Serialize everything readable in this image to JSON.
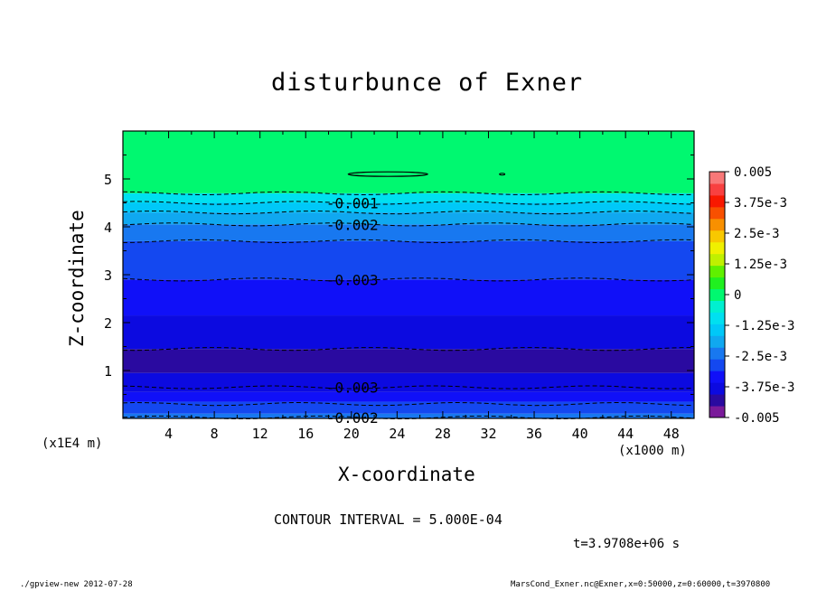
{
  "chart_data": {
    "type": "heatmap",
    "title": "disturbunce of Exner",
    "xlabel": "X-coordinate",
    "ylabel": "Z-coordinate",
    "x_unit_label": "(x1000 m)",
    "y_unit_label": "(x1E4 m)",
    "xlim": [
      0,
      50
    ],
    "ylim": [
      0,
      6
    ],
    "x_ticks": [
      "4",
      "8",
      "12",
      "16",
      "20",
      "24",
      "28",
      "32",
      "36",
      "40",
      "44",
      "48"
    ],
    "x_tick_values": [
      4,
      8,
      12,
      16,
      20,
      24,
      28,
      32,
      36,
      40,
      44,
      48
    ],
    "y_ticks": [
      "1",
      "2",
      "3",
      "4",
      "5"
    ],
    "y_tick_values": [
      1,
      2,
      3,
      4,
      5
    ],
    "colorbar": {
      "range": [
        -0.005,
        0.005
      ],
      "labels": [
        "0.005",
        "3.75e-3",
        "2.5e-3",
        "1.25e-3",
        "0",
        "-1.25e-3",
        "-2.5e-3",
        "-3.75e-3",
        "-0.005"
      ],
      "levels": [
        -0.005,
        -0.0045,
        -0.004,
        -0.0035,
        -0.003,
        -0.0025,
        -0.002,
        -0.0015,
        -0.001,
        -0.0005,
        0,
        0.0005,
        0.001,
        0.0015,
        0.002,
        0.0025,
        0.003,
        0.0035,
        0.004,
        0.0045,
        0.005
      ],
      "colors": [
        "#7a1a9a",
        "#2a0aa0",
        "#0c0ae0",
        "#1010f8",
        "#1448f0",
        "#1878f0",
        "#10a8f0",
        "#00c8f8",
        "#00e0f0",
        "#00f0d0",
        "#00f870",
        "#20f020",
        "#60f000",
        "#c0f000",
        "#f0f000",
        "#f8c800",
        "#f89000",
        "#f85000",
        "#f81800",
        "#f84040",
        "#f87878"
      ]
    },
    "bands": [
      {
        "z0": 0.0,
        "z1": 0.1,
        "value": -0.0025
      },
      {
        "z0": 0.1,
        "z1": 0.35,
        "value": -0.003
      },
      {
        "z0": 0.35,
        "z1": 0.55,
        "value": -0.0035
      },
      {
        "z0": 0.55,
        "z1": 0.95,
        "value": -0.004
      },
      {
        "z0": 0.95,
        "z1": 1.45,
        "value": -0.0045
      },
      {
        "z0": 1.45,
        "z1": 2.15,
        "value": -0.004
      },
      {
        "z0": 2.15,
        "z1": 2.9,
        "value": -0.0035
      },
      {
        "z0": 2.9,
        "z1": 3.7,
        "value": -0.003
      },
      {
        "z0": 3.7,
        "z1": 4.05,
        "value": -0.0025
      },
      {
        "z0": 4.05,
        "z1": 4.3,
        "value": -0.002
      },
      {
        "z0": 4.3,
        "z1": 4.5,
        "value": -0.0015
      },
      {
        "z0": 4.5,
        "z1": 4.7,
        "value": -0.001
      },
      {
        "z0": 4.7,
        "z1": 6.0,
        "value": 0
      }
    ],
    "contour_lines": [
      {
        "z": 0.02
      },
      {
        "z": 0.3
      },
      {
        "z": 0.65
      },
      {
        "z": 1.45
      },
      {
        "z": 2.9
      },
      {
        "z": 3.7
      },
      {
        "z": 4.05
      },
      {
        "z": 4.3
      },
      {
        "z": 4.5
      },
      {
        "z": 4.7
      }
    ],
    "contour_labels": [
      {
        "text": "-0.001",
        "x": 20,
        "z": 4.5
      },
      {
        "text": "-0.002",
        "x": 20,
        "z": 4.05
      },
      {
        "text": "-0.003",
        "x": 20,
        "z": 2.9
      },
      {
        "text": "-0.003",
        "x": 20,
        "z": 0.65
      },
      {
        "text": "-0.002",
        "x": 20,
        "z": 0.02
      }
    ],
    "grid": false,
    "legend": "right (colorbar)"
  },
  "annotations": {
    "contour_interval": "CONTOUR INTERVAL = 5.000E-04",
    "time": "t=3.9708e+06 s",
    "footer_left": "./gpview-new  2012-07-28",
    "footer_right": "MarsCond_Exner.nc@Exner,x=0:50000,z=0:60000,t=3970800"
  }
}
